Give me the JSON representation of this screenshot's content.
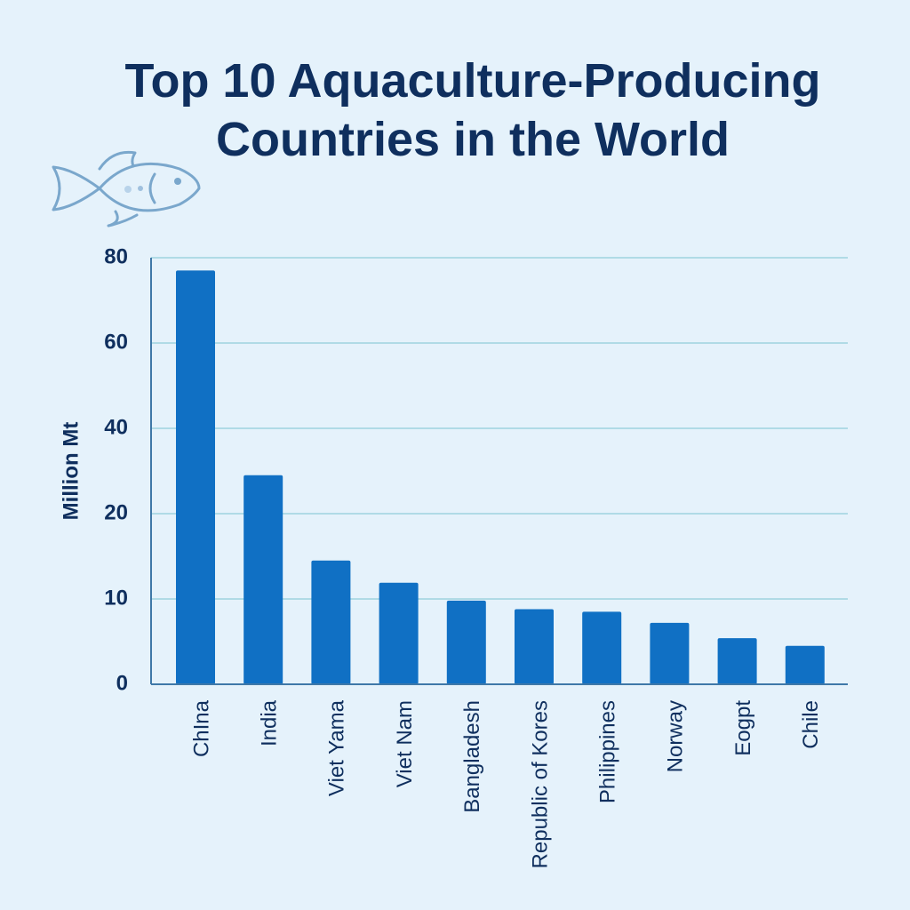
{
  "chart_data": {
    "type": "bar",
    "title_lines": [
      "Top 10 Aquaculture-Producing",
      "Countries in the World"
    ],
    "ylabel": "Million Mt",
    "xlabel": "",
    "y_ticks": [
      {
        "label": "0",
        "value": 0
      },
      {
        "label": "10",
        "value": 10
      },
      {
        "label": "20",
        "value": 20
      },
      {
        "label": "40",
        "value": 40
      },
      {
        "label": "60",
        "value": 60
      },
      {
        "label": "80",
        "value": 80
      }
    ],
    "categories": [
      "ChIna",
      "India",
      "Viet Yama",
      "Viet Nam",
      "Bangladesh",
      "Republic of Kores",
      "Philippines",
      "Norway",
      "Eogpt",
      "Chile"
    ],
    "values": [
      77,
      29,
      14.5,
      11.9,
      9.8,
      8.8,
      8.5,
      7.2,
      5.4,
      4.5
    ],
    "grid": true,
    "bar_color": "#1070c4",
    "gridline_color": "#9fd3df",
    "axis_color": "#3f78a8",
    "text_color": "#0f2f5e",
    "background_color": "#e5f2fb"
  },
  "decoration": {
    "icon": "fish-icon"
  }
}
